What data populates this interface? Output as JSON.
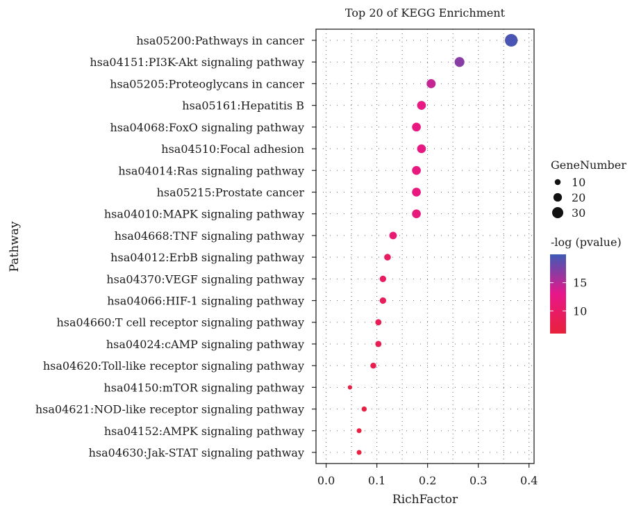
{
  "chart_data": {
    "type": "scatter",
    "title": "Top 20 of KEGG Enrichment",
    "xlabel": "RichFactor",
    "ylabel": "Pathway",
    "xlim": [
      -0.02,
      0.41
    ],
    "xticks": [
      "0.0",
      "0.1",
      "0.2",
      "0.3",
      "0.4"
    ],
    "xtick_values": [
      0.0,
      0.1,
      0.2,
      0.3,
      0.4
    ],
    "grid": true,
    "grid_style": "dotted",
    "categories": [
      "hsa05200:Pathways in cancer",
      "hsa04151:PI3K-Akt signaling pathway",
      "hsa05205:Proteoglycans in cancer",
      "hsa05161:Hepatitis B",
      "hsa04068:FoxO signaling pathway",
      "hsa04510:Focal adhesion",
      "hsa04014:Ras signaling pathway",
      "hsa05215:Prostate cancer",
      "hsa04010:MAPK signaling pathway",
      "hsa04668:TNF signaling pathway",
      "hsa04012:ErbB signaling pathway",
      "hsa04370:VEGF signaling pathway",
      "hsa04066:HIF-1 signaling pathway",
      "hsa04660:T cell receptor signaling pathway",
      "hsa04024:cAMP signaling pathway",
      "hsa04620:Toll-like receptor signaling pathway",
      "hsa04150:mTOR signaling pathway",
      "hsa04621:NOD-like receptor signaling pathway",
      "hsa04152:AMPK signaling pathway",
      "hsa04630:Jak-STAT signaling pathway"
    ],
    "points": [
      {
        "rich_factor": 0.365,
        "gene_number": 36,
        "neg_log_p": 19.5
      },
      {
        "rich_factor": 0.263,
        "gene_number": 25,
        "neg_log_p": 17.0
      },
      {
        "rich_factor": 0.207,
        "gene_number": 22,
        "neg_log_p": 14.5
      },
      {
        "rich_factor": 0.188,
        "gene_number": 21,
        "neg_log_p": 12.5
      },
      {
        "rich_factor": 0.178,
        "gene_number": 21,
        "neg_log_p": 12.3
      },
      {
        "rich_factor": 0.188,
        "gene_number": 21,
        "neg_log_p": 12.3
      },
      {
        "rich_factor": 0.178,
        "gene_number": 21,
        "neg_log_p": 12.0
      },
      {
        "rich_factor": 0.178,
        "gene_number": 21,
        "neg_log_p": 12.0
      },
      {
        "rich_factor": 0.178,
        "gene_number": 21,
        "neg_log_p": 11.8
      },
      {
        "rich_factor": 0.132,
        "gene_number": 16,
        "neg_log_p": 10.8
      },
      {
        "rich_factor": 0.121,
        "gene_number": 13,
        "neg_log_p": 9.5
      },
      {
        "rich_factor": 0.112,
        "gene_number": 12,
        "neg_log_p": 9.2
      },
      {
        "rich_factor": 0.112,
        "gene_number": 12,
        "neg_log_p": 9.0
      },
      {
        "rich_factor": 0.103,
        "gene_number": 11,
        "neg_log_p": 8.5
      },
      {
        "rich_factor": 0.103,
        "gene_number": 11,
        "neg_log_p": 8.3
      },
      {
        "rich_factor": 0.093,
        "gene_number": 10,
        "neg_log_p": 7.8
      },
      {
        "rich_factor": 0.047,
        "gene_number": 4,
        "neg_log_p": 7.0
      },
      {
        "rich_factor": 0.075,
        "gene_number": 7,
        "neg_log_p": 7.0
      },
      {
        "rich_factor": 0.065,
        "gene_number": 6,
        "neg_log_p": 6.8
      },
      {
        "rich_factor": 0.065,
        "gene_number": 6,
        "neg_log_p": 6.6
      }
    ],
    "size_legend": {
      "title": "GeneNumber",
      "values": [
        10,
        20,
        30
      ],
      "labels": [
        "10",
        "20",
        "30"
      ]
    },
    "color_legend": {
      "title": "-log (pvalue)",
      "range": [
        6,
        20
      ],
      "ticks": [
        10,
        15
      ],
      "tick_labels": [
        "10",
        "15"
      ],
      "low_color": "#e8213a",
      "mid_color": "#e8178a",
      "high_color": "#3e5ab6"
    }
  }
}
